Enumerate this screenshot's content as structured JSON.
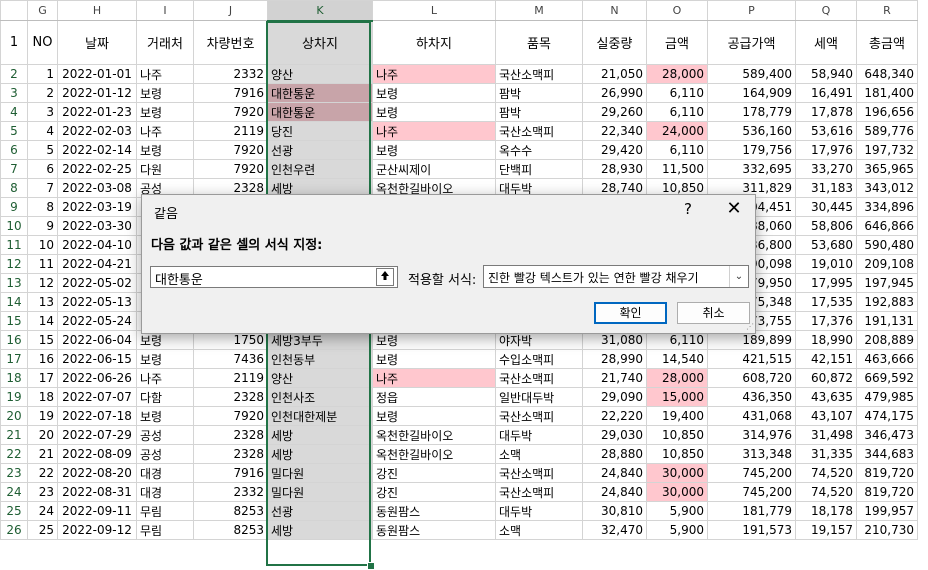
{
  "columns": [
    "G",
    "H",
    "I",
    "J",
    "K",
    "L",
    "M",
    "N",
    "O",
    "P",
    "Q",
    "R"
  ],
  "selected_column": "K",
  "header_row_number": "1",
  "headers": [
    "NO",
    "날짜",
    "거래처",
    "차량번호",
    "상차지",
    "하차지",
    "품목",
    "실중량",
    "금액",
    "공급가액",
    "세액",
    "총금액"
  ],
  "rows": [
    {
      "rn": "2",
      "no": "1",
      "date": "2022-01-01",
      "client": "나주",
      "vehicle": "2332",
      "load": "양산",
      "unload": "나주",
      "item": "국산소맥피",
      "weight": "21,050",
      "amount": "28,000",
      "supply": "589,400",
      "tax": "58,940",
      "total": "648,340"
    },
    {
      "rn": "3",
      "no": "2",
      "date": "2022-01-12",
      "client": "보령",
      "vehicle": "7916",
      "load": "대한통운",
      "unload": "보령",
      "item": "팜박",
      "weight": "26,990",
      "amount": "6,110",
      "supply": "164,909",
      "tax": "16,491",
      "total": "181,400"
    },
    {
      "rn": "4",
      "no": "3",
      "date": "2022-01-23",
      "client": "보령",
      "vehicle": "7920",
      "load": "대한통운",
      "unload": "보령",
      "item": "팜박",
      "weight": "29,260",
      "amount": "6,110",
      "supply": "178,779",
      "tax": "17,878",
      "total": "196,656"
    },
    {
      "rn": "5",
      "no": "4",
      "date": "2022-02-03",
      "client": "나주",
      "vehicle": "2119",
      "load": "당진",
      "unload": "나주",
      "item": "국산소맥피",
      "weight": "22,340",
      "amount": "24,000",
      "supply": "536,160",
      "tax": "53,616",
      "total": "589,776"
    },
    {
      "rn": "6",
      "no": "5",
      "date": "2022-02-14",
      "client": "보령",
      "vehicle": "7920",
      "load": "선광",
      "unload": "보령",
      "item": "옥수수",
      "weight": "29,420",
      "amount": "6,110",
      "supply": "179,756",
      "tax": "17,976",
      "total": "197,732"
    },
    {
      "rn": "7",
      "no": "6",
      "date": "2022-02-25",
      "client": "다원",
      "vehicle": "7920",
      "load": "인천우련",
      "unload": "군산씨제이",
      "item": "단백피",
      "weight": "28,930",
      "amount": "11,500",
      "supply": "332,695",
      "tax": "33,270",
      "total": "365,965"
    },
    {
      "rn": "8",
      "no": "7",
      "date": "2022-03-08",
      "client": "공성",
      "vehicle": "2328",
      "load": "세방",
      "unload": "옥천한길바이오",
      "item": "대두박",
      "weight": "28,740",
      "amount": "10,850",
      "supply": "311,829",
      "tax": "31,183",
      "total": "343,012"
    },
    {
      "rn": "9",
      "no": "8",
      "date": "2022-03-19",
      "client": "",
      "vehicle": "",
      "load": "",
      "unload": "",
      "item": "",
      "weight": "",
      "amount": "",
      "supply": "304,451",
      "tax": "30,445",
      "total": "334,896"
    },
    {
      "rn": "10",
      "no": "9",
      "date": "2022-03-30",
      "client": "",
      "vehicle": "",
      "load": "",
      "unload": "",
      "item": "",
      "weight": "",
      "amount": "",
      "supply": "588,060",
      "tax": "58,806",
      "total": "646,866"
    },
    {
      "rn": "11",
      "no": "10",
      "date": "2022-04-10",
      "client": "",
      "vehicle": "",
      "load": "",
      "unload": "",
      "item": "",
      "weight": "",
      "amount": "",
      "supply": "536,800",
      "tax": "53,680",
      "total": "590,480"
    },
    {
      "rn": "12",
      "no": "11",
      "date": "2022-04-21",
      "client": "",
      "vehicle": "",
      "load": "",
      "unload": "",
      "item": "",
      "weight": "",
      "amount": "",
      "supply": "190,098",
      "tax": "19,010",
      "total": "209,108"
    },
    {
      "rn": "13",
      "no": "12",
      "date": "2022-05-02",
      "client": "",
      "vehicle": "",
      "load": "",
      "unload": "",
      "item": "",
      "weight": "",
      "amount": "",
      "supply": "179,950",
      "tax": "17,995",
      "total": "197,945"
    },
    {
      "rn": "14",
      "no": "13",
      "date": "2022-05-13",
      "client": "",
      "vehicle": "",
      "load": "",
      "unload": "",
      "item": "",
      "weight": "",
      "amount": "",
      "supply": "175,348",
      "tax": "17,535",
      "total": "192,883"
    },
    {
      "rn": "15",
      "no": "14",
      "date": "2022-05-24",
      "client": "",
      "vehicle": "",
      "load": "",
      "unload": "",
      "item": "",
      "weight": "",
      "amount": "",
      "supply": "173,755",
      "tax": "17,376",
      "total": "191,131"
    },
    {
      "rn": "16",
      "no": "15",
      "date": "2022-06-04",
      "client": "보령",
      "vehicle": "1750",
      "load": "세방3부두",
      "unload": "보령",
      "item": "야자박",
      "weight": "31,080",
      "amount": "6,110",
      "supply": "189,899",
      "tax": "18,990",
      "total": "208,889"
    },
    {
      "rn": "17",
      "no": "16",
      "date": "2022-06-15",
      "client": "보령",
      "vehicle": "7436",
      "load": "인천동부",
      "unload": "보령",
      "item": "수입소맥피",
      "weight": "28,990",
      "amount": "14,540",
      "supply": "421,515",
      "tax": "42,151",
      "total": "463,666"
    },
    {
      "rn": "18",
      "no": "17",
      "date": "2022-06-26",
      "client": "나주",
      "vehicle": "2119",
      "load": "양산",
      "unload": "나주",
      "item": "국산소맥피",
      "weight": "21,740",
      "amount": "28,000",
      "supply": "608,720",
      "tax": "60,872",
      "total": "669,592"
    },
    {
      "rn": "19",
      "no": "18",
      "date": "2022-07-07",
      "client": "다함",
      "vehicle": "2328",
      "load": "인천사조",
      "unload": "정읍",
      "item": "일반대두박",
      "weight": "29,090",
      "amount": "15,000",
      "supply": "436,350",
      "tax": "43,635",
      "total": "479,985"
    },
    {
      "rn": "20",
      "no": "19",
      "date": "2022-07-18",
      "client": "보령",
      "vehicle": "7920",
      "load": "인천대한제분",
      "unload": "보령",
      "item": "국산소맥피",
      "weight": "22,220",
      "amount": "19,400",
      "supply": "431,068",
      "tax": "43,107",
      "total": "474,175"
    },
    {
      "rn": "21",
      "no": "20",
      "date": "2022-07-29",
      "client": "공성",
      "vehicle": "2328",
      "load": "세방",
      "unload": "옥천한길바이오",
      "item": "대두박",
      "weight": "29,030",
      "amount": "10,850",
      "supply": "314,976",
      "tax": "31,498",
      "total": "346,473"
    },
    {
      "rn": "22",
      "no": "21",
      "date": "2022-08-09",
      "client": "공성",
      "vehicle": "2328",
      "load": "세방",
      "unload": "옥천한길바이오",
      "item": "소맥",
      "weight": "28,880",
      "amount": "10,850",
      "supply": "313,348",
      "tax": "31,335",
      "total": "344,683"
    },
    {
      "rn": "23",
      "no": "22",
      "date": "2022-08-20",
      "client": "대경",
      "vehicle": "7916",
      "load": "밀다원",
      "unload": "강진",
      "item": "국산소맥피",
      "weight": "24,840",
      "amount": "30,000",
      "supply": "745,200",
      "tax": "74,520",
      "total": "819,720"
    },
    {
      "rn": "24",
      "no": "23",
      "date": "2022-08-31",
      "client": "대경",
      "vehicle": "2332",
      "load": "밀다원",
      "unload": "강진",
      "item": "국산소맥피",
      "weight": "24,840",
      "amount": "30,000",
      "supply": "745,200",
      "tax": "74,520",
      "total": "819,720"
    },
    {
      "rn": "25",
      "no": "24",
      "date": "2022-09-11",
      "client": "무림",
      "vehicle": "8253",
      "load": "선광",
      "unload": "동원팜스",
      "item": "대두박",
      "weight": "30,810",
      "amount": "5,900",
      "supply": "181,779",
      "tax": "18,178",
      "total": "199,957"
    },
    {
      "rn": "26",
      "no": "25",
      "date": "2022-09-12",
      "client": "무림",
      "vehicle": "8253",
      "load": "세방",
      "unload": "동원팜스",
      "item": "소맥",
      "weight": "32,470",
      "amount": "5,900",
      "supply": "191,573",
      "tax": "19,157",
      "total": "210,730"
    }
  ],
  "highlight_colors": {
    "dark_fill": "#c8a4a9",
    "light_fill": "#ffc7ce",
    "text": "#9c0006",
    "selection": "#217346"
  },
  "dialog": {
    "title": "같음",
    "help": "?",
    "close": "✕",
    "prompt": "다음 값과 같은 셀의 서식 지정:",
    "value": "대한통운",
    "collapse_icon": "arrow-up-icon",
    "format_label": "적용할 서식:",
    "format_value": "진한 빨강 텍스트가 있는 연한 빨강 채우기",
    "ok_label": "확인",
    "cancel_label": "취소"
  }
}
